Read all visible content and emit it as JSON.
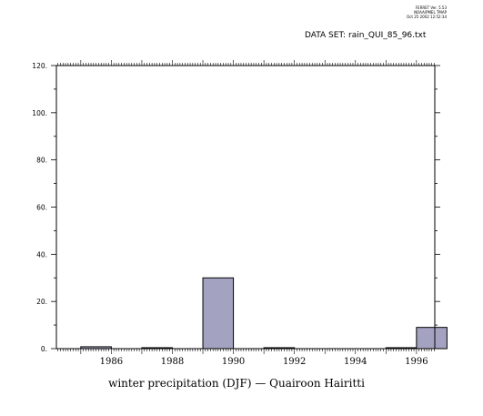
{
  "stamp": {
    "line1": "FERRET Ver. 5.53",
    "line2": "NOAA/PMEL TMAP",
    "line3": "Oct 25 2002 12:52:34"
  },
  "dataset": {
    "label": "DATA SET:",
    "value": "rain_QUI_85_96.txt"
  },
  "chart_data": {
    "type": "bar",
    "xlabel": "winter precipitation (DJF) — Quairoon Hairitti",
    "ylabel": "",
    "xlim": [
      1984.2,
      1996.6
    ],
    "ylim": [
      0,
      120
    ],
    "yticks": [
      0,
      20,
      40,
      60,
      80,
      100,
      120
    ],
    "ytick_labels": [
      "0.",
      "20.",
      "40.",
      "60.",
      "80.",
      "100.",
      "120."
    ],
    "xticks": [
      1986,
      1988,
      1990,
      1992,
      1994,
      1996
    ],
    "xtick_labels": [
      "1986",
      "1988",
      "1990",
      "1992",
      "1994",
      "1996"
    ],
    "categories": [
      1985,
      1986,
      1987,
      1988,
      1989,
      1990,
      1991,
      1992,
      1993,
      1994,
      1995,
      1996
    ],
    "values": [
      0.8,
      0,
      0.4,
      0,
      30,
      0,
      0.4,
      0,
      0,
      0,
      0.4,
      9
    ],
    "bar_color": "#a3a3c1",
    "grid": false
  }
}
